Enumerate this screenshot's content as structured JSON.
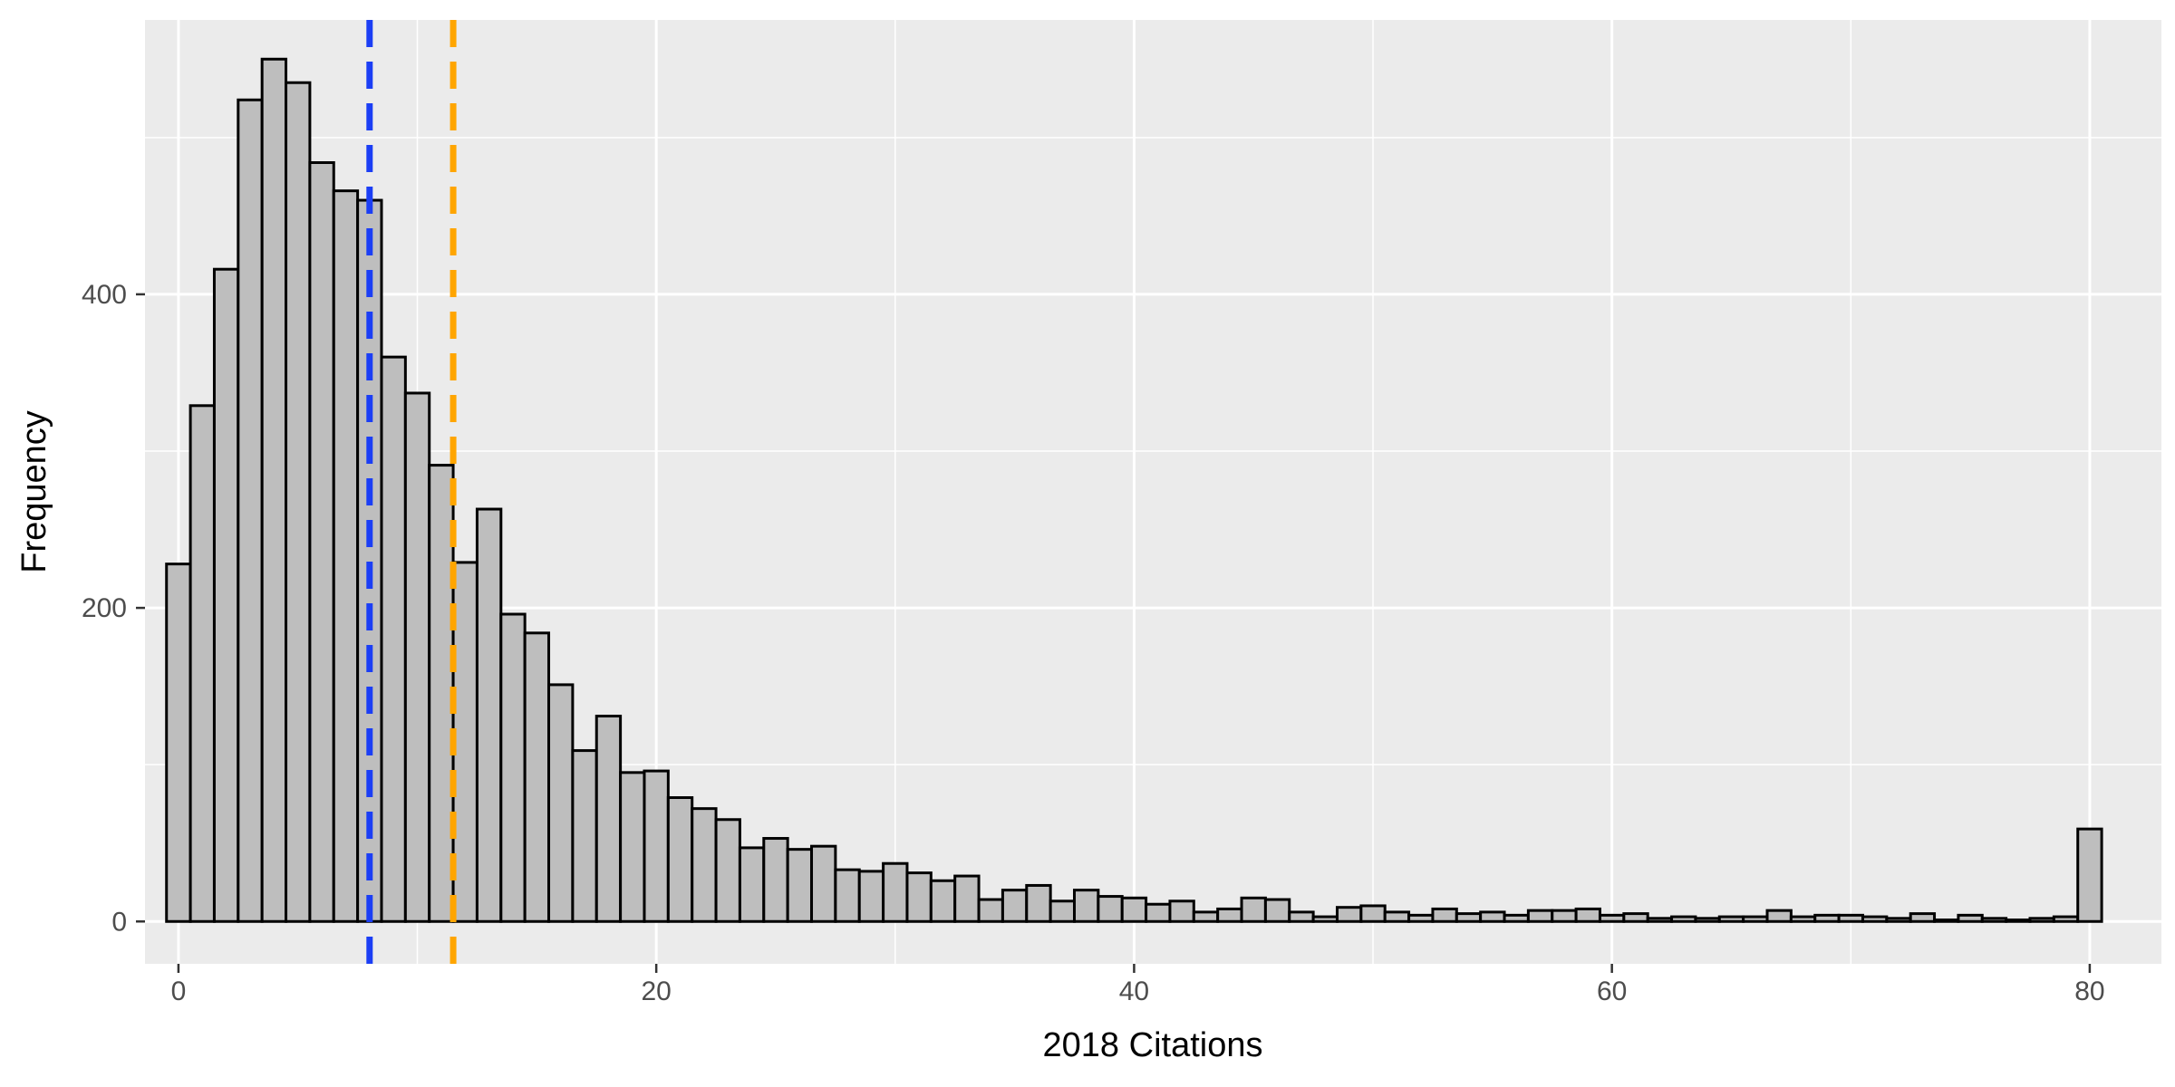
{
  "chart_data": {
    "type": "bar",
    "subtype": "histogram",
    "xlabel": "2018 Citations",
    "ylabel": "Frequency",
    "xlim": [
      -1.4,
      83
    ],
    "ylim": [
      -27,
      575
    ],
    "x_ticks": [
      0,
      20,
      40,
      60,
      80
    ],
    "y_ticks": [
      0,
      200,
      400
    ],
    "grid": true,
    "legend": "none",
    "bin_width": 1,
    "bins": [
      0,
      1,
      2,
      3,
      4,
      5,
      6,
      7,
      8,
      9,
      10,
      11,
      12,
      13,
      14,
      15,
      16,
      17,
      18,
      19,
      20,
      21,
      22,
      23,
      24,
      25,
      26,
      27,
      28,
      29,
      30,
      31,
      32,
      33,
      34,
      35,
      36,
      37,
      38,
      39,
      40,
      41,
      42,
      43,
      44,
      45,
      46,
      47,
      48,
      49,
      50,
      51,
      52,
      53,
      54,
      55,
      56,
      57,
      58,
      59,
      60,
      61,
      62,
      63,
      64,
      65,
      66,
      67,
      68,
      69,
      70,
      71,
      72,
      73,
      74,
      75,
      76,
      77,
      78,
      79,
      80
    ],
    "values": [
      228,
      329,
      416,
      524,
      550,
      535,
      484,
      466,
      460,
      360,
      337,
      291,
      229,
      263,
      196,
      184,
      151,
      109,
      131,
      95,
      96,
      79,
      72,
      65,
      47,
      53,
      46,
      48,
      33,
      32,
      37,
      31,
      26,
      29,
      14,
      20,
      23,
      13,
      20,
      16,
      15,
      11,
      13,
      6,
      8,
      15,
      14,
      6,
      3,
      9,
      10,
      6,
      4,
      8,
      5,
      6,
      4,
      7,
      7,
      8,
      4,
      5,
      2,
      3,
      2,
      3,
      3,
      7,
      3,
      4,
      4,
      3,
      2,
      5,
      1,
      4,
      2,
      1,
      2,
      3,
      59
    ],
    "bar_fill": "#bebebe",
    "bar_outline": "#000000",
    "panel_background": "#ebebeb",
    "grid_color": "#ffffff",
    "reference_lines": [
      {
        "x": 8,
        "color": "#1b3ef5",
        "style": "dashed"
      },
      {
        "x": 11.5,
        "color": "#ffa500",
        "style": "dashed"
      }
    ]
  }
}
